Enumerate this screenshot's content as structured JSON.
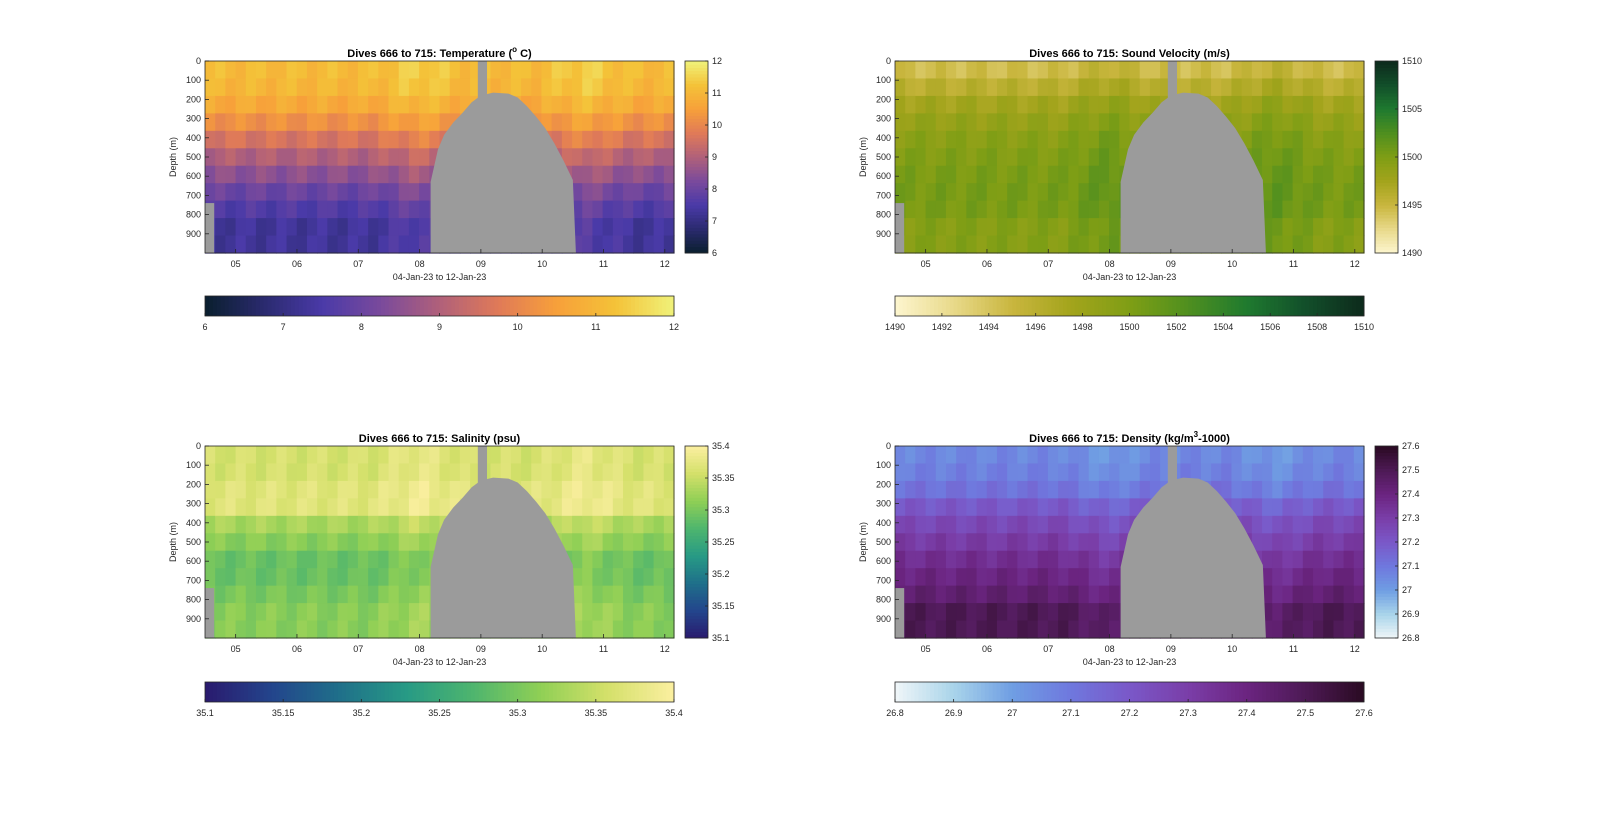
{
  "figure": {
    "xlabel": "04-Jan-23 to 12-Jan-23",
    "ylabel": "Depth (m)",
    "x_ticks": [
      "05",
      "06",
      "07",
      "08",
      "09",
      "10",
      "11",
      "12"
    ],
    "y_ticks": [
      "0",
      "100",
      "200",
      "300",
      "400",
      "500",
      "600",
      "700",
      "800",
      "900"
    ]
  },
  "chart_data": [
    {
      "type": "heatmap",
      "title_prefix": "Dives 666 to 715: Temperature (",
      "title_sup": "o",
      "title_suffix": " C)",
      "clim": [
        6,
        12
      ],
      "colorbar_ticks": [
        "6",
        "7",
        "8",
        "9",
        "10",
        "11",
        "12"
      ],
      "hbar_ticks": [
        "6",
        "7",
        "8",
        "9",
        "10",
        "11",
        "12"
      ],
      "colormap": [
        "#0a1f2e",
        "#2a2a6e",
        "#4a3aa8",
        "#7a4a9c",
        "#b0607a",
        "#e07a58",
        "#f7a03a",
        "#f4c238",
        "#f0f27a"
      ],
      "gray": "#9b9b9b",
      "profile": [
        11.1,
        11.0,
        10.7,
        10.2,
        9.6,
        9.0,
        8.5,
        8.0,
        7.6,
        7.3
      ]
    },
    {
      "type": "heatmap",
      "title_prefix": "Dives 666 to 715: Sound Velocity (m/s)",
      "title_sup": "",
      "title_suffix": "",
      "clim": [
        1490,
        1510
      ],
      "colorbar_ticks": [
        "1490",
        "1495",
        "1500",
        "1505",
        "1510"
      ],
      "hbar_ticks": [
        "1490",
        "1492",
        "1494",
        "1496",
        "1498",
        "1500",
        "1502",
        "1504",
        "1506",
        "1508",
        "1510"
      ],
      "colormap": [
        "#fdf6cf",
        "#e8d98a",
        "#c9b63e",
        "#a3a41c",
        "#7f9e15",
        "#4f8f1f",
        "#1f7a2f",
        "#124f2a",
        "#0d2a1c"
      ],
      "gray": "#9b9b9b",
      "profile": [
        1494.5,
        1496.0,
        1497.5,
        1498.5,
        1499.3,
        1499.8,
        1500.2,
        1500.4,
        1500.3,
        1499.6
      ]
    },
    {
      "type": "heatmap",
      "title_prefix": "Dives 666 to 715: Salinity (psu)",
      "title_sup": "",
      "title_suffix": "",
      "clim": [
        35.1,
        35.4
      ],
      "colorbar_ticks": [
        "35.1",
        "35.15",
        "35.2",
        "35.25",
        "35.3",
        "35.35",
        "35.4"
      ],
      "hbar_ticks": [
        "35.1",
        "35.15",
        "35.2",
        "35.25",
        "35.3",
        "35.35",
        "35.4"
      ],
      "colormap": [
        "#2a1a6e",
        "#23458c",
        "#1f6f8a",
        "#279a85",
        "#4eb56e",
        "#8fcf55",
        "#d4e06a",
        "#fbefa0"
      ],
      "gray": "#9b9b9b",
      "profile": [
        35.36,
        35.36,
        35.37,
        35.37,
        35.33,
        35.31,
        35.29,
        35.29,
        35.3,
        35.31
      ]
    },
    {
      "type": "heatmap",
      "title_prefix": "Dives 666 to 715: Density (kg/m",
      "title_sup": "3",
      "title_suffix": "-1000)",
      "clim": [
        26.8,
        27.6
      ],
      "colorbar_ticks": [
        "26.8",
        "26.9",
        "27",
        "27.1",
        "27.2",
        "27.3",
        "27.4",
        "27.5",
        "27.6"
      ],
      "hbar_ticks": [
        "26.8",
        "26.9",
        "27",
        "27.1",
        "27.2",
        "27.3",
        "27.4",
        "27.5",
        "27.6"
      ],
      "colormap": [
        "#f0f6f8",
        "#a9d4ea",
        "#6f9ee3",
        "#6f78de",
        "#7a58c8",
        "#7a3ea8",
        "#6b2480",
        "#4d1a55",
        "#2a0a22"
      ],
      "gray": "#9b9b9b",
      "profile": [
        27.06,
        27.08,
        27.12,
        27.2,
        27.26,
        27.31,
        27.36,
        27.4,
        27.44,
        27.5
      ]
    }
  ]
}
